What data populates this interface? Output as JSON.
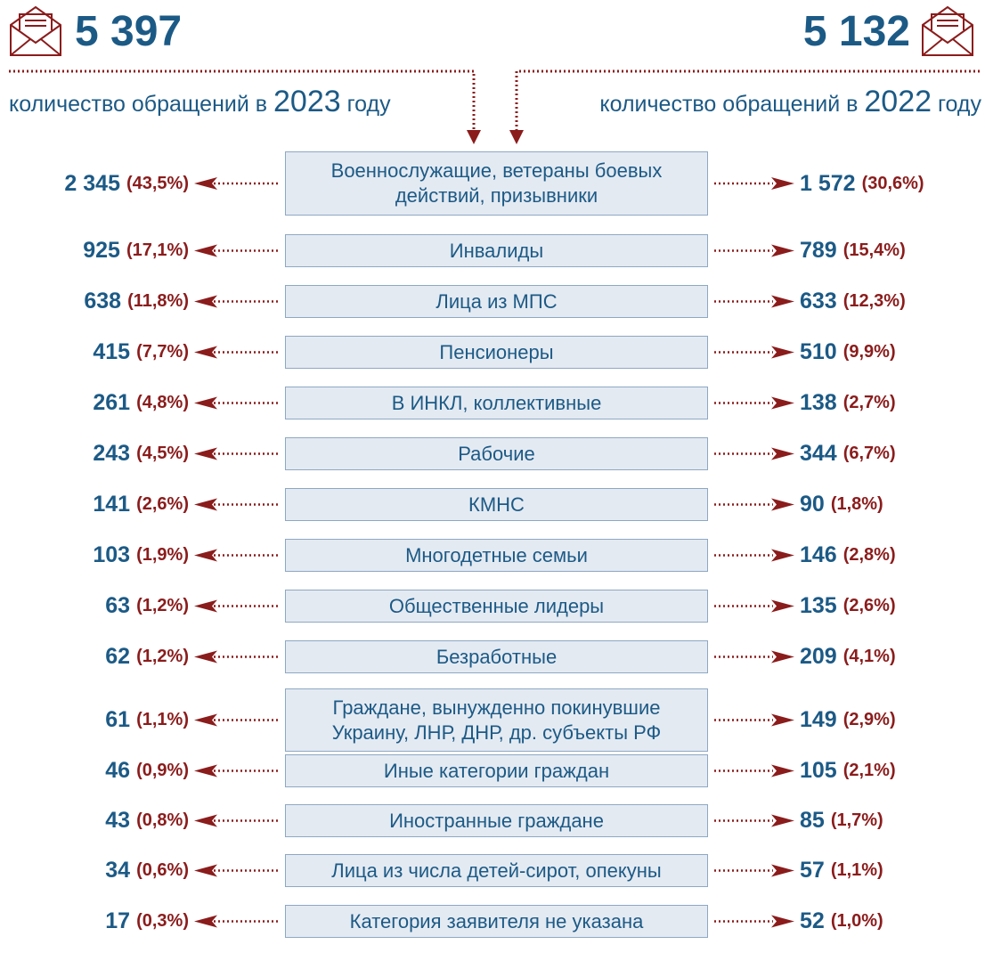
{
  "header": {
    "left": {
      "total": "5 397",
      "caption": [
        "количество обращений в ",
        "2023",
        " году"
      ]
    },
    "right": {
      "total": "5 132",
      "caption": [
        "количество обращений в ",
        "2022",
        " году"
      ]
    }
  },
  "rows": [
    {
      "category": "Военнослужащие, ветераны боевых действий, призывники",
      "left_value": "2 345",
      "left_percent": "(43,5%)",
      "right_value": "1 572",
      "right_percent": "(30,6%)"
    },
    {
      "category": "Инвалиды",
      "left_value": "925",
      "left_percent": "(17,1%)",
      "right_value": "789",
      "right_percent": "(15,4%)"
    },
    {
      "category": "Лица из МПС",
      "left_value": "638",
      "left_percent": "(11,8%)",
      "right_value": "633",
      "right_percent": "(12,3%)"
    },
    {
      "category": "Пенсионеры",
      "left_value": "415",
      "left_percent": "(7,7%)",
      "right_value": "510",
      "right_percent": "(9,9%)"
    },
    {
      "category": "В ИНКЛ, коллективные",
      "left_value": "261",
      "left_percent": "(4,8%)",
      "right_value": "138",
      "right_percent": "(2,7%)"
    },
    {
      "category": "Рабочие",
      "left_value": "243",
      "left_percent": "(4,5%)",
      "right_value": "344",
      "right_percent": "(6,7%)"
    },
    {
      "category": "КМНС",
      "left_value": "141",
      "left_percent": "(2,6%)",
      "right_value": "90",
      "right_percent": "(1,8%)"
    },
    {
      "category": "Многодетные семьи",
      "left_value": "103",
      "left_percent": "(1,9%)",
      "right_value": "146",
      "right_percent": "(2,8%)"
    },
    {
      "category": "Общественные лидеры",
      "left_value": "63",
      "left_percent": "(1,2%)",
      "right_value": "135",
      "right_percent": "(2,6%)"
    },
    {
      "category": "Безработные",
      "left_value": "62",
      "left_percent": "(1,2%)",
      "right_value": "209",
      "right_percent": "(4,1%)"
    },
    {
      "category": "Граждане, вынужденно покинувшие Украину, ЛНР, ДНР, др. субъекты РФ",
      "left_value": "61",
      "left_percent": "(1,1%)",
      "right_value": "149",
      "right_percent": "(2,9%)"
    },
    {
      "category": "Иные категории граждан",
      "left_value": "46",
      "left_percent": "(0,9%)",
      "right_value": "105",
      "right_percent": "(2,1%)"
    },
    {
      "category": "Иностранные граждане",
      "left_value": "43",
      "left_percent": "(0,8%)",
      "right_value": "85",
      "right_percent": "(1,7%)"
    },
    {
      "category": "Лица из числа детей-сирот, опекуны",
      "left_value": "34",
      "left_percent": "(0,6%)",
      "right_value": "57",
      "right_percent": "(1,1%)"
    },
    {
      "category": "Категория заявителя не указана",
      "left_value": "17",
      "left_percent": "(0,3%)",
      "right_value": "52",
      "right_percent": "(1,0%)"
    }
  ]
}
